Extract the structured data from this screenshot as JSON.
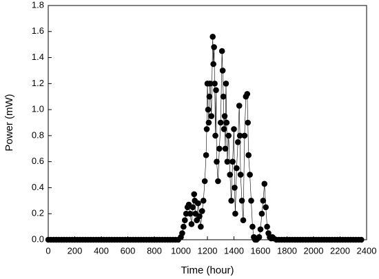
{
  "chart_data": {
    "type": "line",
    "x_label": "Time (hour)",
    "y_label": "Power (mW)",
    "x": [
      0,
      20,
      40,
      60,
      80,
      100,
      120,
      140,
      160,
      180,
      200,
      220,
      240,
      260,
      280,
      300,
      320,
      340,
      360,
      380,
      400,
      420,
      440,
      460,
      480,
      500,
      520,
      540,
      560,
      580,
      600,
      620,
      640,
      660,
      680,
      700,
      720,
      740,
      760,
      780,
      800,
      820,
      840,
      860,
      880,
      900,
      920,
      940,
      960,
      980,
      1000,
      1010,
      1020,
      1030,
      1040,
      1050,
      1060,
      1070,
      1080,
      1090,
      1100,
      1105,
      1110,
      1120,
      1130,
      1140,
      1150,
      1160,
      1170,
      1180,
      1190,
      1195,
      1200,
      1205,
      1210,
      1215,
      1220,
      1230,
      1240,
      1245,
      1250,
      1255,
      1260,
      1265,
      1270,
      1280,
      1290,
      1300,
      1310,
      1315,
      1320,
      1325,
      1330,
      1335,
      1340,
      1345,
      1350,
      1360,
      1370,
      1380,
      1390,
      1400,
      1405,
      1410,
      1420,
      1430,
      1440,
      1445,
      1450,
      1460,
      1470,
      1480,
      1490,
      1500,
      1505,
      1510,
      1520,
      1530,
      1540,
      1550,
      1560,
      1570,
      1580,
      1590,
      1600,
      1610,
      1620,
      1630,
      1640,
      1650,
      1660,
      1670,
      1680,
      1690,
      1700,
      1720,
      1740,
      1760,
      1780,
      1800,
      1820,
      1840,
      1860,
      1880,
      1900,
      1920,
      1940,
      1960,
      1980,
      2000,
      2020,
      2040,
      2060,
      2080,
      2100,
      2120,
      2140,
      2160,
      2180,
      2200,
      2220,
      2240,
      2260,
      2280,
      2300,
      2320,
      2340,
      2360
    ],
    "series": [
      {
        "color": "#000000",
        "values": [
          0,
          0,
          0,
          0,
          0,
          0,
          0,
          0,
          0,
          0,
          0,
          0,
          0,
          0,
          0,
          0,
          0,
          0,
          0,
          0,
          0,
          0,
          0,
          0,
          0,
          0,
          0,
          0,
          0,
          0,
          0,
          0,
          0,
          0,
          0,
          0,
          0,
          0,
          0,
          0,
          0,
          0,
          0,
          0,
          0,
          0,
          0,
          0,
          0,
          0,
          0.02,
          0.05,
          0.1,
          0.15,
          0.2,
          0.25,
          0.27,
          0.2,
          0.12,
          0.25,
          0.35,
          0.3,
          0.2,
          0.15,
          0.28,
          0.18,
          0.1,
          0.22,
          0.3,
          0.45,
          0.65,
          0.85,
          1.2,
          1.0,
          0.9,
          1.1,
          1.2,
          0.95,
          1.56,
          1.35,
          1.48,
          1.2,
          0.8,
          1.15,
          0.6,
          0.45,
          0.7,
          0.9,
          1.45,
          1.3,
          1.1,
          0.85,
          0.95,
          0.7,
          1.2,
          0.9,
          0.6,
          0.8,
          0.5,
          0.3,
          0.6,
          0.85,
          0.4,
          0.2,
          0.55,
          0.75,
          1.03,
          0.8,
          0.5,
          0.3,
          0.15,
          0.8,
          1.1,
          1.12,
          0.9,
          0.65,
          0.5,
          0.3,
          0.1,
          0.02,
          0,
          0,
          0.01,
          0.02,
          0.08,
          0.2,
          0.3,
          0.43,
          0.25,
          0.1,
          0.05,
          0.02,
          0.01,
          0.02,
          0.01,
          0,
          0,
          0,
          0,
          0,
          0,
          0,
          0,
          0,
          0,
          0,
          0,
          0,
          0,
          0,
          0,
          0,
          0,
          0,
          0,
          0,
          0,
          0,
          0,
          0,
          0,
          0,
          0,
          0,
          0,
          0,
          0,
          0
        ]
      }
    ],
    "xlim": [
      0,
      2400
    ],
    "xticks": [
      0,
      200,
      400,
      600,
      800,
      1000,
      1200,
      1400,
      1600,
      1800,
      2000,
      2200,
      2400
    ],
    "ylim": [
      0,
      1.8
    ],
    "yticks": [
      {
        "value": 0,
        "label": "0.0"
      },
      0.2,
      0.4,
      0.6,
      0.8,
      {
        "value": 1,
        "label": "1.0"
      },
      1.2,
      1.4,
      1.6,
      1.8
    ]
  }
}
